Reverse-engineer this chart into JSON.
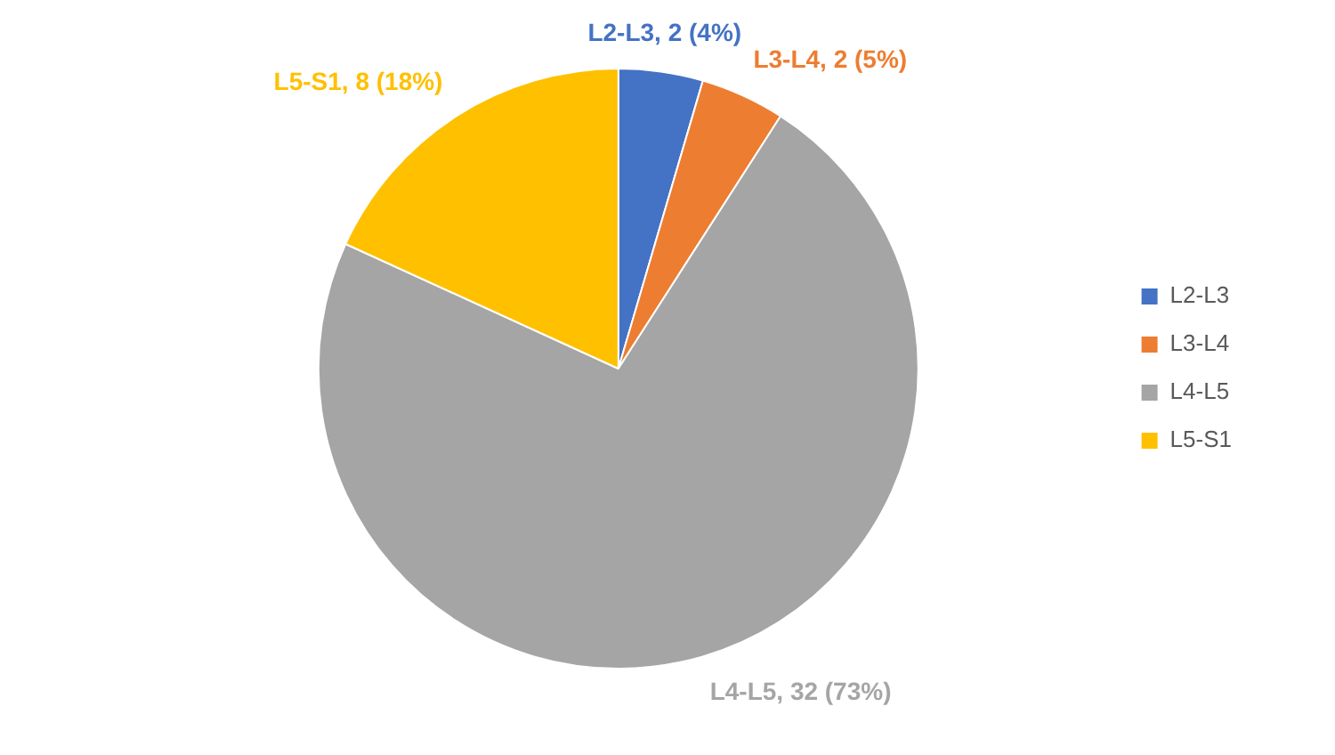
{
  "chart_data": {
    "type": "pie",
    "categories": [
      "L2-L3",
      "L3-L4",
      "L4-L5",
      "L5-S1"
    ],
    "values": [
      2,
      2,
      32,
      8
    ],
    "colors": [
      "#4472c4",
      "#ed7d31",
      "#a5a5a5",
      "#ffc000"
    ],
    "value_labels": [
      "L2-L3, 2 (4%)",
      "L3-L4, 2 (5%)",
      "L4-L5, 32 (73%)",
      "L5-S1, 8 (18%)"
    ],
    "legend": "right"
  }
}
